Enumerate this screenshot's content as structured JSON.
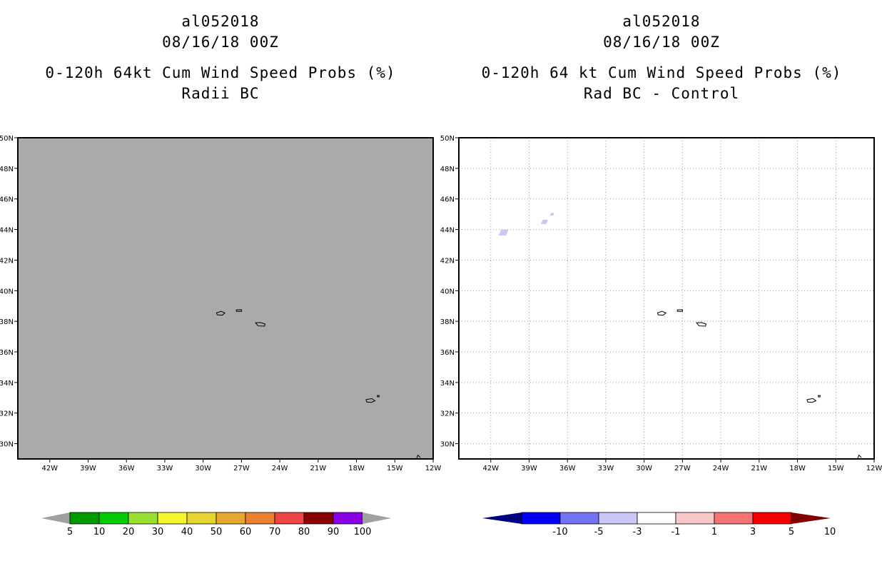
{
  "left_panel": {
    "storm_id": "al052018",
    "datetime": "08/16/18 00Z",
    "product": "0-120h 64kt Cum Wind Speed Probs (%)",
    "subtitle": "Radii BC"
  },
  "right_panel": {
    "storm_id": "al052018",
    "datetime": "08/16/18 00Z",
    "product": "0-120h 64 kt Cum Wind Speed Probs (%)",
    "subtitle": "Rad BC - Control"
  },
  "chart_data": [
    {
      "type": "heatmap",
      "title": "0-120h 64kt Cum Wind Speed Probs (%) Radii BC",
      "x_ticks": [
        "42W",
        "39W",
        "36W",
        "33W",
        "30W",
        "27W",
        "24W",
        "21W",
        "18W",
        "15W",
        "12W"
      ],
      "y_ticks": [
        "30N",
        "32N",
        "34N",
        "36N",
        "38N",
        "40N",
        "42N",
        "44N",
        "46N",
        "48N",
        "50N"
      ],
      "xlim_deg_lon": [
        -44.5,
        -12
      ],
      "ylim_deg_lat": [
        29,
        50
      ],
      "field": "uniform below 5% (gray fill)",
      "grid": false,
      "colorbar": {
        "labels": [
          "5",
          "10",
          "20",
          "30",
          "40",
          "50",
          "60",
          "70",
          "80",
          "90",
          "100"
        ],
        "colors": [
          "#a0a0a0",
          "#009900",
          "#00cc00",
          "#99e033",
          "#f5f530",
          "#e6d530",
          "#e6a830",
          "#eb8030",
          "#f04545",
          "#880000",
          "#8a00e6",
          "#a0a0a0"
        ]
      }
    },
    {
      "type": "heatmap",
      "title": "0-120h 64 kt Cum Wind Speed Probs (%) Rad BC - Control",
      "x_ticks": [
        "42W",
        "39W",
        "36W",
        "33W",
        "30W",
        "27W",
        "24W",
        "21W",
        "18W",
        "15W",
        "12W"
      ],
      "y_ticks": [
        "30N",
        "32N",
        "34N",
        "36N",
        "38N",
        "40N",
        "42N",
        "44N",
        "46N",
        "48N",
        "50N"
      ],
      "xlim_deg_lon": [
        -44.5,
        -12
      ],
      "ylim_deg_lat": [
        29,
        50
      ],
      "grid": true,
      "field_patches": [
        {
          "category": "-3 to -1",
          "lon": -41.0,
          "lat": 43.8
        },
        {
          "category": "-3 to -1",
          "lon": -37.8,
          "lat": 44.5
        },
        {
          "category": "-3 to -1",
          "lon": -37.2,
          "lat": 45.0
        }
      ],
      "colorbar": {
        "labels": [
          "-10",
          "-5",
          "-3",
          "-1",
          "1",
          "3",
          "5",
          "10"
        ],
        "colors": [
          "#000080",
          "#0000f5",
          "#7373f5",
          "#c8c8f8",
          "#ffffff",
          "#f8c8c8",
          "#f57373",
          "#f50000",
          "#800000"
        ]
      }
    }
  ]
}
